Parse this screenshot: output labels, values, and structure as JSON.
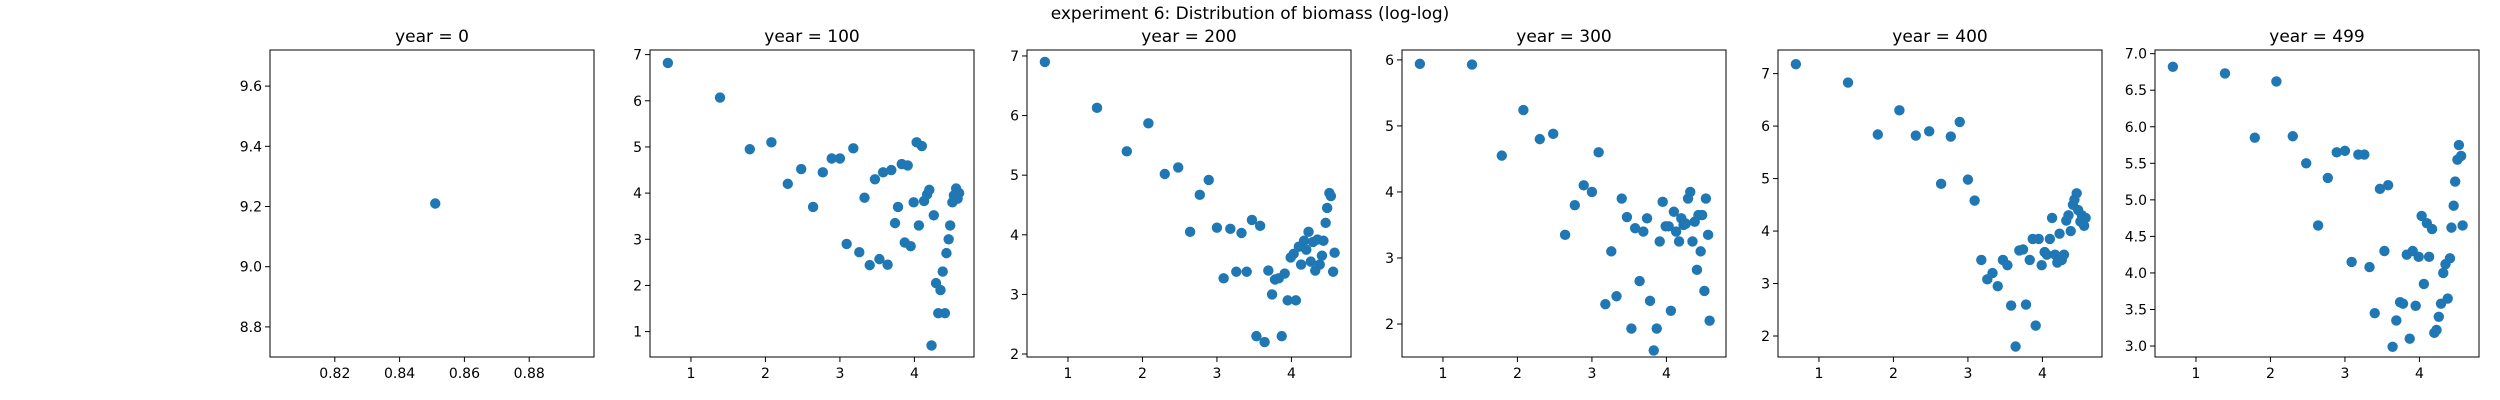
{
  "title": "experiment 6: Distribution of biomass (log-log)",
  "colors": {
    "marker": "#1f77b4",
    "axes": "#000000"
  },
  "chart_data": [
    {
      "type": "scatter",
      "title": "year = 0",
      "xlim": [
        0.8,
        0.9
      ],
      "ylim": [
        8.7,
        9.72
      ],
      "xticks": [
        0.82,
        0.84,
        0.86,
        0.88
      ],
      "xtick_labels": [
        "0.82",
        "0.84",
        "0.86",
        "0.88"
      ],
      "yticks": [
        8.8,
        9.0,
        9.2,
        9.4,
        9.6
      ],
      "ytick_labels": [
        "8.8",
        "9.0",
        "9.2",
        "9.4",
        "9.6"
      ],
      "points": [
        [
          0.851,
          9.21
        ]
      ]
    },
    {
      "type": "scatter",
      "title": "year = 100",
      "xlim": [
        0.45,
        4.8
      ],
      "ylim": [
        0.45,
        7.1
      ],
      "xticks": [
        1,
        2,
        3,
        4
      ],
      "xtick_labels": [
        "1",
        "2",
        "3",
        "4"
      ],
      "yticks": [
        1,
        2,
        3,
        4,
        5,
        6,
        7
      ],
      "ytick_labels": [
        "1",
        "2",
        "3",
        "4",
        "5",
        "6",
        "7"
      ],
      "points": [
        [
          0.69,
          6.82
        ],
        [
          1.39,
          6.07
        ],
        [
          1.79,
          4.95
        ],
        [
          2.08,
          5.1
        ],
        [
          2.3,
          4.2
        ],
        [
          2.48,
          4.52
        ],
        [
          2.64,
          3.7
        ],
        [
          2.77,
          4.45
        ],
        [
          2.89,
          4.75
        ],
        [
          3.0,
          4.75
        ],
        [
          3.09,
          2.9
        ],
        [
          3.18,
          4.97
        ],
        [
          3.26,
          2.72
        ],
        [
          3.33,
          3.9
        ],
        [
          3.4,
          2.44
        ],
        [
          3.47,
          4.3
        ],
        [
          3.53,
          2.57
        ],
        [
          3.58,
          4.45
        ],
        [
          3.64,
          2.45
        ],
        [
          3.69,
          4.5
        ],
        [
          3.74,
          3.35
        ],
        [
          3.78,
          3.7
        ],
        [
          3.83,
          4.63
        ],
        [
          3.87,
          2.93
        ],
        [
          3.91,
          4.6
        ],
        [
          3.95,
          2.85
        ],
        [
          3.99,
          3.8
        ],
        [
          4.03,
          5.1
        ],
        [
          4.06,
          3.3
        ],
        [
          4.1,
          5.02
        ],
        [
          4.13,
          3.83
        ],
        [
          4.17,
          3.97
        ],
        [
          4.2,
          4.07
        ],
        [
          4.23,
          0.7
        ],
        [
          4.26,
          3.52
        ],
        [
          4.29,
          2.05
        ],
        [
          4.32,
          1.4
        ],
        [
          4.35,
          1.9
        ],
        [
          4.38,
          2.3
        ],
        [
          4.41,
          1.4
        ],
        [
          4.43,
          2.7
        ],
        [
          4.46,
          3.0
        ],
        [
          4.48,
          3.3
        ],
        [
          4.51,
          3.8
        ],
        [
          4.53,
          3.95
        ],
        [
          4.56,
          4.1
        ],
        [
          4.58,
          3.88
        ],
        [
          4.6,
          4.0
        ]
      ]
    },
    {
      "type": "scatter",
      "title": "year = 200",
      "xlim": [
        0.45,
        4.8
      ],
      "ylim": [
        1.95,
        7.1
      ],
      "xticks": [
        1,
        2,
        3,
        4
      ],
      "xtick_labels": [
        "1",
        "2",
        "3",
        "4"
      ],
      "yticks": [
        2,
        3,
        4,
        5,
        6,
        7
      ],
      "ytick_labels": [
        "2",
        "3",
        "4",
        "5",
        "6",
        "7"
      ],
      "points": [
        [
          0.69,
          6.9
        ],
        [
          1.39,
          6.13
        ],
        [
          1.79,
          5.4
        ],
        [
          2.08,
          5.87
        ],
        [
          2.3,
          5.02
        ],
        [
          2.48,
          5.13
        ],
        [
          2.64,
          4.05
        ],
        [
          2.77,
          4.67
        ],
        [
          2.89,
          4.92
        ],
        [
          3.0,
          4.12
        ],
        [
          3.09,
          3.27
        ],
        [
          3.18,
          4.1
        ],
        [
          3.26,
          3.38
        ],
        [
          3.33,
          4.03
        ],
        [
          3.4,
          3.38
        ],
        [
          3.47,
          4.25
        ],
        [
          3.53,
          2.3
        ],
        [
          3.58,
          4.15
        ],
        [
          3.64,
          2.2
        ],
        [
          3.69,
          3.4
        ],
        [
          3.74,
          3.0
        ],
        [
          3.78,
          3.25
        ],
        [
          3.83,
          3.27
        ],
        [
          3.87,
          2.3
        ],
        [
          3.91,
          3.35
        ],
        [
          3.95,
          2.9
        ],
        [
          3.99,
          3.62
        ],
        [
          4.03,
          3.68
        ],
        [
          4.06,
          2.9
        ],
        [
          4.1,
          3.8
        ],
        [
          4.13,
          3.5
        ],
        [
          4.17,
          3.9
        ],
        [
          4.2,
          3.75
        ],
        [
          4.23,
          4.05
        ],
        [
          4.26,
          3.55
        ],
        [
          4.29,
          3.88
        ],
        [
          4.32,
          3.4
        ],
        [
          4.35,
          3.92
        ],
        [
          4.38,
          3.5
        ],
        [
          4.41,
          3.65
        ],
        [
          4.43,
          3.9
        ],
        [
          4.46,
          4.2
        ],
        [
          4.48,
          4.45
        ],
        [
          4.51,
          4.7
        ],
        [
          4.53,
          4.65
        ],
        [
          4.56,
          3.38
        ],
        [
          4.58,
          3.7
        ]
      ]
    },
    {
      "type": "scatter",
      "title": "year = 300",
      "xlim": [
        0.45,
        4.8
      ],
      "ylim": [
        1.5,
        6.15
      ],
      "xticks": [
        1,
        2,
        3,
        4
      ],
      "xtick_labels": [
        "1",
        "2",
        "3",
        "4"
      ],
      "yticks": [
        2,
        3,
        4,
        5,
        6
      ],
      "ytick_labels": [
        "2",
        "3",
        "4",
        "5",
        "6"
      ],
      "points": [
        [
          0.69,
          5.94
        ],
        [
          1.39,
          5.93
        ],
        [
          1.79,
          4.55
        ],
        [
          2.08,
          5.24
        ],
        [
          2.3,
          4.8
        ],
        [
          2.48,
          4.88
        ],
        [
          2.64,
          3.35
        ],
        [
          2.77,
          3.8
        ],
        [
          2.89,
          4.1
        ],
        [
          3.0,
          4.0
        ],
        [
          3.09,
          4.6
        ],
        [
          3.18,
          2.3
        ],
        [
          3.26,
          3.1
        ],
        [
          3.33,
          2.42
        ],
        [
          3.4,
          3.9
        ],
        [
          3.47,
          3.62
        ],
        [
          3.53,
          1.93
        ],
        [
          3.58,
          3.45
        ],
        [
          3.64,
          2.65
        ],
        [
          3.69,
          3.4
        ],
        [
          3.74,
          3.6
        ],
        [
          3.78,
          2.35
        ],
        [
          3.83,
          1.6
        ],
        [
          3.87,
          1.93
        ],
        [
          3.91,
          3.25
        ],
        [
          3.95,
          3.85
        ],
        [
          3.99,
          3.48
        ],
        [
          4.03,
          3.48
        ],
        [
          4.06,
          2.2
        ],
        [
          4.1,
          3.7
        ],
        [
          4.13,
          3.4
        ],
        [
          4.17,
          3.25
        ],
        [
          4.2,
          3.6
        ],
        [
          4.23,
          3.5
        ],
        [
          4.26,
          3.52
        ],
        [
          4.29,
          3.9
        ],
        [
          4.32,
          4.0
        ],
        [
          4.35,
          3.25
        ],
        [
          4.38,
          3.55
        ],
        [
          4.41,
          2.82
        ],
        [
          4.43,
          3.65
        ],
        [
          4.46,
          3.1
        ],
        [
          4.48,
          3.65
        ],
        [
          4.51,
          2.5
        ],
        [
          4.53,
          3.9
        ],
        [
          4.56,
          3.35
        ],
        [
          4.58,
          2.05
        ]
      ]
    },
    {
      "type": "scatter",
      "title": "year = 400",
      "xlim": [
        0.45,
        4.8
      ],
      "ylim": [
        1.6,
        7.45
      ],
      "xticks": [
        1,
        2,
        3,
        4
      ],
      "xtick_labels": [
        "1",
        "2",
        "3",
        "4"
      ],
      "yticks": [
        2,
        3,
        4,
        5,
        6,
        7
      ],
      "ytick_labels": [
        "2",
        "3",
        "4",
        "5",
        "6",
        "7"
      ],
      "points": [
        [
          0.69,
          7.18
        ],
        [
          1.39,
          6.83
        ],
        [
          1.79,
          5.84
        ],
        [
          2.08,
          6.3
        ],
        [
          2.3,
          5.82
        ],
        [
          2.48,
          5.9
        ],
        [
          2.64,
          4.9
        ],
        [
          2.77,
          5.8
        ],
        [
          2.89,
          6.08
        ],
        [
          3.0,
          4.98
        ],
        [
          3.09,
          4.58
        ],
        [
          3.18,
          3.45
        ],
        [
          3.26,
          3.08
        ],
        [
          3.33,
          3.2
        ],
        [
          3.4,
          2.95
        ],
        [
          3.47,
          3.45
        ],
        [
          3.53,
          3.35
        ],
        [
          3.58,
          2.58
        ],
        [
          3.64,
          1.8
        ],
        [
          3.69,
          3.63
        ],
        [
          3.74,
          3.65
        ],
        [
          3.78,
          2.6
        ],
        [
          3.83,
          3.45
        ],
        [
          3.87,
          3.85
        ],
        [
          3.91,
          2.2
        ],
        [
          3.95,
          3.85
        ],
        [
          3.99,
          3.35
        ],
        [
          4.03,
          3.6
        ],
        [
          4.06,
          3.55
        ],
        [
          4.1,
          3.85
        ],
        [
          4.13,
          4.25
        ],
        [
          4.17,
          3.55
        ],
        [
          4.2,
          3.4
        ],
        [
          4.23,
          3.95
        ],
        [
          4.26,
          3.45
        ],
        [
          4.29,
          3.55
        ],
        [
          4.32,
          4.2
        ],
        [
          4.35,
          4.3
        ],
        [
          4.38,
          4.0
        ],
        [
          4.41,
          4.5
        ],
        [
          4.43,
          4.6
        ],
        [
          4.46,
          4.72
        ],
        [
          4.48,
          4.4
        ],
        [
          4.51,
          4.18
        ],
        [
          4.53,
          4.3
        ],
        [
          4.56,
          4.1
        ],
        [
          4.58,
          4.25
        ]
      ]
    },
    {
      "type": "scatter",
      "title": "year = 499",
      "xlim": [
        0.45,
        4.8
      ],
      "ylim": [
        2.85,
        7.05
      ],
      "xticks": [
        1,
        2,
        3,
        4
      ],
      "xtick_labels": [
        "1",
        "2",
        "3",
        "4"
      ],
      "yticks": [
        3.0,
        3.5,
        4.0,
        4.5,
        5.0,
        5.5,
        6.0,
        6.5,
        7.0
      ],
      "ytick_labels": [
        "3.0",
        "3.5",
        "4.0",
        "4.5",
        "5.0",
        "5.5",
        "6.0",
        "6.5",
        "7.0"
      ],
      "points": [
        [
          0.69,
          6.82
        ],
        [
          1.39,
          6.73
        ],
        [
          1.79,
          5.85
        ],
        [
          2.08,
          6.62
        ],
        [
          2.3,
          5.87
        ],
        [
          2.48,
          5.5
        ],
        [
          2.64,
          4.65
        ],
        [
          2.77,
          5.3
        ],
        [
          2.89,
          5.65
        ],
        [
          3.0,
          5.67
        ],
        [
          3.09,
          4.15
        ],
        [
          3.18,
          5.62
        ],
        [
          3.26,
          5.62
        ],
        [
          3.33,
          4.08
        ],
        [
          3.4,
          3.45
        ],
        [
          3.47,
          5.15
        ],
        [
          3.53,
          4.3
        ],
        [
          3.58,
          5.2
        ],
        [
          3.64,
          2.99
        ],
        [
          3.69,
          3.35
        ],
        [
          3.74,
          3.6
        ],
        [
          3.78,
          3.58
        ],
        [
          3.83,
          4.25
        ],
        [
          3.87,
          3.1
        ],
        [
          3.91,
          4.3
        ],
        [
          3.95,
          3.55
        ],
        [
          3.99,
          4.22
        ],
        [
          4.03,
          4.78
        ],
        [
          4.06,
          3.85
        ],
        [
          4.1,
          4.68
        ],
        [
          4.13,
          4.22
        ],
        [
          4.17,
          4.6
        ],
        [
          4.2,
          3.18
        ],
        [
          4.23,
          3.22
        ],
        [
          4.26,
          3.4
        ],
        [
          4.29,
          3.58
        ],
        [
          4.32,
          4.0
        ],
        [
          4.35,
          4.12
        ],
        [
          4.38,
          3.65
        ],
        [
          4.41,
          4.2
        ],
        [
          4.43,
          4.62
        ],
        [
          4.46,
          4.92
        ],
        [
          4.48,
          5.25
        ],
        [
          4.51,
          5.55
        ],
        [
          4.53,
          5.75
        ],
        [
          4.56,
          5.6
        ],
        [
          4.58,
          4.65
        ]
      ]
    }
  ]
}
